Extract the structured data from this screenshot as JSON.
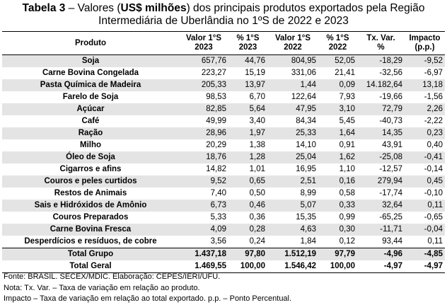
{
  "title": {
    "lines": [
      [
        {
          "text": "Tabela 3",
          "bold": true
        },
        {
          "text": " – Valores (",
          "bold": false
        },
        {
          "text": "US$ milhões",
          "bold": true
        },
        {
          "text": ") dos principais produtos exportados pela Região",
          "bold": false
        }
      ],
      [
        {
          "text": "Intermediária de Uberlândia no 1ºS de 2022 e 2023",
          "bold": false
        }
      ]
    ]
  },
  "table": {
    "header": [
      [
        "Produto"
      ],
      [
        "Valor 1°S",
        "2023"
      ],
      [
        "% 1°S",
        "2023"
      ],
      [
        "Valor 1°S",
        "2022"
      ],
      [
        "% 1°S",
        "2022"
      ],
      [
        "Tx. Var.",
        "%"
      ],
      [
        "Impacto",
        "(p.p.)"
      ]
    ],
    "rows": [
      [
        "Soja",
        "657,76",
        "44,76",
        "804,95",
        "52,05",
        "-18,29",
        "-9,52"
      ],
      [
        "Carne Bovina Congelada",
        "223,27",
        "15,19",
        "331,06",
        "21,41",
        "-32,56",
        "-6,97"
      ],
      [
        "Pasta Química de Madeira",
        "205,33",
        "13,97",
        "1,44",
        "0,09",
        "14.182,64",
        "13,18"
      ],
      [
        "Farelo de Soja",
        "98,53",
        "6,70",
        "122,64",
        "7,93",
        "-19,66",
        "-1,56"
      ],
      [
        "Açúcar",
        "82,85",
        "5,64",
        "47,95",
        "3,10",
        "72,79",
        "2,26"
      ],
      [
        "Café",
        "49,99",
        "3,40",
        "84,34",
        "5,45",
        "-40,73",
        "-2,22"
      ],
      [
        "Ração",
        "28,96",
        "1,97",
        "25,33",
        "1,64",
        "14,35",
        "0,23"
      ],
      [
        "Milho",
        "20,29",
        "1,38",
        "14,10",
        "0,91",
        "43,91",
        "0,40"
      ],
      [
        "Óleo de Soja",
        "18,76",
        "1,28",
        "25,04",
        "1,62",
        "-25,08",
        "-0,41"
      ],
      [
        "Cigarros e afins",
        "14,82",
        "1,01",
        "16,95",
        "1,10",
        "-12,57",
        "-0,14"
      ],
      [
        "Couros e peles curtidos",
        "9,52",
        "0,65",
        "2,51",
        "0,16",
        "279,94",
        "0,45"
      ],
      [
        "Restos de Animais",
        "7,40",
        "0,50",
        "8,99",
        "0,58",
        "-17,74",
        "-0,10"
      ],
      [
        "Sais e Hidróxidos de Amônio",
        "6,73",
        "0,46",
        "5,07",
        "0,33",
        "32,64",
        "0,11"
      ],
      [
        "Couros Preparados",
        "5,33",
        "0,36",
        "15,35",
        "0,99",
        "-65,25",
        "-0,65"
      ],
      [
        "Carne Bovina Fresca",
        "4,09",
        "0,28",
        "4,63",
        "0,30",
        "-11,71",
        "-0,04"
      ],
      [
        "Desperdícios e resíduos, de cobre",
        "3,56",
        "0,24",
        "1,84",
        "0,12",
        "93,44",
        "0,11"
      ]
    ],
    "totals": [
      [
        "Total Grupo",
        "1.437,18",
        "97,80",
        "1.512,19",
        "97,79",
        "-4,96",
        "-4,85"
      ],
      [
        "Total Geral",
        "1.469,55",
        "100,00",
        "1.546,42",
        "100,00",
        "-4,97",
        "-4,97"
      ]
    ]
  },
  "notes": [
    "Fonte: BRASIL. SECEX/MDIC. Elaboração: CEPES/IERI/UFU.",
    "Nota: Tx. Var. – Taxa de variação em relação ao produto.",
    "Impacto – Taxa de variação em relação ao total exportado. p.p. – Ponto Percentual."
  ]
}
